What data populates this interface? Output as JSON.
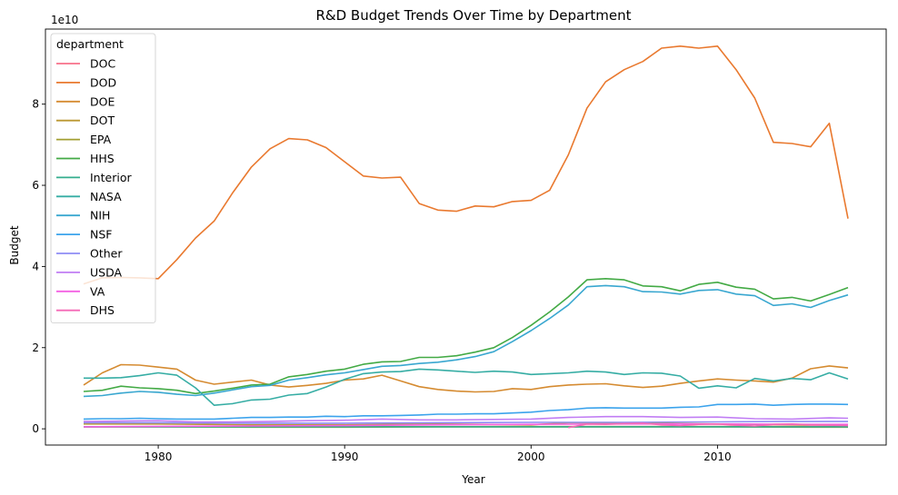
{
  "chart_data": {
    "type": "line",
    "title": "R&D Budget Trends Over Time by Department",
    "xlabel": "Year",
    "ylabel": "Budget",
    "offset_text": "1e10",
    "xlim": [
      1973.95,
      2019.05
    ],
    "ylim": [
      -0.4,
      9.85
    ],
    "xticks": [
      1980,
      1990,
      2000,
      2010
    ],
    "yticks": [
      0,
      2,
      4,
      6,
      8
    ],
    "grid": false,
    "legend": {
      "title": "department",
      "placement": "top-left"
    },
    "series": [
      {
        "name": "DOC",
        "color": "#f77189",
        "years": [
          1976,
          2017
        ],
        "values": [
          0.05,
          0.06
        ]
      },
      {
        "name": "DOD",
        "color": "#e9792f",
        "years": [
          1976,
          1977,
          1978,
          1979,
          1980,
          1981,
          1982,
          1983,
          1984,
          1985,
          1986,
          1987,
          1988,
          1989,
          1990,
          1991,
          1992,
          1993,
          1994,
          1995,
          1996,
          1997,
          1998,
          1999,
          2000,
          2001,
          2002,
          2003,
          2004,
          2005,
          2006,
          2007,
          2008,
          2009,
          2010,
          2011,
          2012,
          2013,
          2014,
          2015,
          2016,
          2017
        ],
        "values": [
          3.57,
          3.72,
          3.73,
          3.72,
          3.7,
          4.17,
          4.7,
          5.12,
          5.82,
          6.45,
          6.9,
          7.15,
          7.12,
          6.93,
          6.58,
          6.23,
          6.18,
          6.2,
          5.55,
          5.39,
          5.36,
          5.49,
          5.47,
          5.6,
          5.63,
          5.88,
          6.75,
          7.9,
          8.55,
          8.85,
          9.05,
          9.38,
          9.43,
          9.38,
          9.43,
          8.85,
          8.15,
          7.06,
          7.03,
          6.95,
          7.53,
          5.18
        ]
      },
      {
        "name": "DOE",
        "color": "#d58b31",
        "years": [
          1976,
          1977,
          1978,
          1979,
          1980,
          1981,
          1982,
          1983,
          1984,
          1985,
          1986,
          1987,
          1988,
          1989,
          1990,
          1991,
          1992,
          1993,
          1994,
          1995,
          1996,
          1997,
          1998,
          1999,
          2000,
          2001,
          2002,
          2003,
          2004,
          2005,
          2006,
          2007,
          2008,
          2009,
          2010,
          2011,
          2012,
          2013,
          2014,
          2015,
          2016,
          2017
        ],
        "values": [
          1.08,
          1.38,
          1.58,
          1.57,
          1.52,
          1.47,
          1.2,
          1.1,
          1.15,
          1.2,
          1.08,
          1.03,
          1.07,
          1.12,
          1.2,
          1.23,
          1.32,
          1.18,
          1.04,
          0.97,
          0.93,
          0.91,
          0.92,
          0.99,
          0.97,
          1.04,
          1.08,
          1.1,
          1.11,
          1.06,
          1.02,
          1.05,
          1.12,
          1.18,
          1.23,
          1.2,
          1.18,
          1.15,
          1.25,
          1.48,
          1.55,
          1.5
        ]
      },
      {
        "name": "DOT",
        "color": "#bb9832",
        "years": [
          1976,
          1980,
          1985,
          1990,
          1995,
          2000,
          2002,
          2005,
          2010,
          2015,
          2017
        ],
        "values": [
          0.12,
          0.12,
          0.1,
          0.1,
          0.12,
          0.1,
          0.15,
          0.14,
          0.12,
          0.1,
          0.1
        ]
      },
      {
        "name": "EPA",
        "color": "#a39f31",
        "years": [
          1976,
          1980,
          1985,
          1990,
          1995,
          2000,
          2005,
          2010,
          2015,
          2017
        ],
        "values": [
          0.05,
          0.05,
          0.04,
          0.04,
          0.05,
          0.05,
          0.05,
          0.05,
          0.04,
          0.04
        ]
      },
      {
        "name": "HHS",
        "color": "#43aa45",
        "years": [
          1976,
          1977,
          1978,
          1979,
          1980,
          1981,
          1982,
          1983,
          1984,
          1985,
          1986,
          1987,
          1988,
          1989,
          1990,
          1991,
          1992,
          1993,
          1994,
          1995,
          1996,
          1997,
          1998,
          1999,
          2000,
          2001,
          2002,
          2003,
          2004,
          2005,
          2006,
          2007,
          2008,
          2009,
          2010,
          2011,
          2012,
          2013,
          2014,
          2015,
          2016,
          2017
        ],
        "values": [
          0.92,
          0.95,
          1.05,
          1.01,
          0.99,
          0.95,
          0.87,
          0.93,
          1.0,
          1.08,
          1.1,
          1.28,
          1.34,
          1.42,
          1.47,
          1.59,
          1.65,
          1.66,
          1.76,
          1.76,
          1.8,
          1.89,
          2.0,
          2.25,
          2.55,
          2.88,
          3.25,
          3.67,
          3.7,
          3.67,
          3.52,
          3.5,
          3.4,
          3.56,
          3.61,
          3.49,
          3.44,
          3.2,
          3.24,
          3.15,
          3.31,
          3.48
        ]
      },
      {
        "name": "Interior",
        "color": "#34ae8e",
        "years": [
          1976,
          1977,
          1978,
          1979,
          1980,
          1981,
          1982,
          1983,
          1984,
          1985,
          1986,
          1987,
          1988,
          1989,
          1990,
          1991,
          1992,
          1993,
          1994,
          1995,
          1996,
          1997,
          1998,
          1999,
          2000,
          2001,
          2002,
          2003,
          2004,
          2005,
          2006,
          2007,
          2008,
          2009,
          2010,
          2011,
          2012,
          2013,
          2014,
          2015,
          2016,
          2017
        ],
        "values": [
          0.05,
          0.05,
          0.05,
          0.05,
          0.05,
          0.05,
          0.05,
          0.05,
          0.05,
          0.05,
          0.05,
          0.05,
          0.05,
          0.05,
          0.05,
          0.05,
          0.05,
          0.05,
          0.05,
          0.05,
          0.05,
          0.05,
          0.05,
          0.05,
          0.05,
          0.05,
          0.05,
          0.05,
          0.05,
          0.05,
          0.05,
          0.05,
          0.05,
          0.05,
          0.05,
          0.05,
          0.05,
          0.05,
          0.05,
          0.05,
          0.05,
          0.05
        ]
      },
      {
        "name": "NASA",
        "color": "#36ada4",
        "years": [
          1976,
          1977,
          1978,
          1979,
          1980,
          1981,
          1982,
          1983,
          1984,
          1985,
          1986,
          1987,
          1988,
          1989,
          1990,
          1991,
          1992,
          1993,
          1994,
          1995,
          1996,
          1997,
          1998,
          1999,
          2000,
          2001,
          2002,
          2003,
          2004,
          2005,
          2006,
          2007,
          2008,
          2009,
          2010,
          2011,
          2012,
          2013,
          2014,
          2015,
          2016,
          2017
        ],
        "values": [
          1.25,
          1.25,
          1.26,
          1.31,
          1.38,
          1.32,
          1.01,
          0.58,
          0.62,
          0.71,
          0.73,
          0.83,
          0.87,
          1.03,
          1.22,
          1.36,
          1.4,
          1.41,
          1.47,
          1.45,
          1.42,
          1.39,
          1.42,
          1.4,
          1.34,
          1.36,
          1.38,
          1.42,
          1.4,
          1.34,
          1.38,
          1.37,
          1.3,
          1.0,
          1.06,
          1.01,
          1.24,
          1.18,
          1.24,
          1.21,
          1.38,
          1.23
        ]
      },
      {
        "name": "NIH",
        "color": "#39a7d0",
        "years": [
          1976,
          1977,
          1978,
          1979,
          1980,
          1981,
          1982,
          1983,
          1984,
          1985,
          1986,
          1987,
          1988,
          1989,
          1990,
          1991,
          1992,
          1993,
          1994,
          1995,
          1996,
          1997,
          1998,
          1999,
          2000,
          2001,
          2002,
          2003,
          2004,
          2005,
          2006,
          2007,
          2008,
          2009,
          2010,
          2011,
          2012,
          2013,
          2014,
          2015,
          2016,
          2017
        ],
        "values": [
          0.8,
          0.82,
          0.88,
          0.92,
          0.9,
          0.85,
          0.82,
          0.88,
          0.96,
          1.04,
          1.07,
          1.2,
          1.26,
          1.33,
          1.38,
          1.46,
          1.54,
          1.56,
          1.61,
          1.64,
          1.7,
          1.78,
          1.9,
          2.15,
          2.42,
          2.72,
          3.05,
          3.5,
          3.53,
          3.5,
          3.38,
          3.37,
          3.32,
          3.41,
          3.43,
          3.32,
          3.28,
          3.04,
          3.08,
          2.99,
          3.16,
          3.3
        ]
      },
      {
        "name": "NSF",
        "color": "#3ba3ec",
        "years": [
          1976,
          1977,
          1978,
          1979,
          1980,
          1981,
          1982,
          1983,
          1984,
          1985,
          1986,
          1987,
          1988,
          1989,
          1990,
          1991,
          1992,
          1993,
          1994,
          1995,
          1996,
          1997,
          1998,
          1999,
          2000,
          2001,
          2002,
          2003,
          2004,
          2005,
          2006,
          2007,
          2008,
          2009,
          2010,
          2011,
          2012,
          2013,
          2014,
          2015,
          2016,
          2017
        ],
        "values": [
          0.24,
          0.25,
          0.25,
          0.26,
          0.25,
          0.24,
          0.24,
          0.24,
          0.26,
          0.28,
          0.28,
          0.29,
          0.29,
          0.31,
          0.3,
          0.32,
          0.32,
          0.33,
          0.34,
          0.36,
          0.36,
          0.37,
          0.37,
          0.39,
          0.41,
          0.45,
          0.47,
          0.51,
          0.52,
          0.51,
          0.51,
          0.51,
          0.53,
          0.54,
          0.6,
          0.6,
          0.61,
          0.58,
          0.6,
          0.61,
          0.61,
          0.6
        ]
      },
      {
        "name": "Other",
        "color": "#8e8cf4",
        "years": [
          1976,
          1980,
          1985,
          1990,
          1995,
          2000,
          2005,
          2010,
          2013,
          2015,
          2017
        ],
        "values": [
          0.15,
          0.15,
          0.14,
          0.14,
          0.15,
          0.16,
          0.16,
          0.17,
          0.18,
          0.18,
          0.18
        ]
      },
      {
        "name": "USDA",
        "color": "#c07df4",
        "years": [
          1976,
          1978,
          1980,
          1982,
          1984,
          1986,
          1988,
          1990,
          1992,
          1994,
          1996,
          1998,
          2000,
          2002,
          2004,
          2006,
          2008,
          2010,
          2012,
          2014,
          2016,
          2017
        ],
        "values": [
          0.18,
          0.19,
          0.2,
          0.17,
          0.17,
          0.18,
          0.2,
          0.21,
          0.24,
          0.22,
          0.22,
          0.23,
          0.24,
          0.28,
          0.3,
          0.3,
          0.28,
          0.29,
          0.25,
          0.24,
          0.27,
          0.26
        ]
      },
      {
        "name": "VA",
        "color": "#f460e3",
        "years": [
          1976,
          1980,
          1985,
          1990,
          1995,
          2000,
          2005,
          2010,
          2015,
          2017
        ],
        "values": [
          0.05,
          0.06,
          0.07,
          0.08,
          0.1,
          0.11,
          0.12,
          0.12,
          0.11,
          0.11
        ]
      },
      {
        "name": "DHS",
        "color": "#f569b6",
        "years": [
          2002,
          2003,
          2004,
          2005,
          2006,
          2007,
          2008,
          2009,
          2010,
          2011,
          2012,
          2013,
          2014,
          2015,
          2016,
          2017
        ],
        "values": [
          0.03,
          0.12,
          0.11,
          0.13,
          0.14,
          0.1,
          0.08,
          0.11,
          0.12,
          0.09,
          0.07,
          0.11,
          0.12,
          0.1,
          0.09,
          0.08
        ]
      }
    ]
  }
}
